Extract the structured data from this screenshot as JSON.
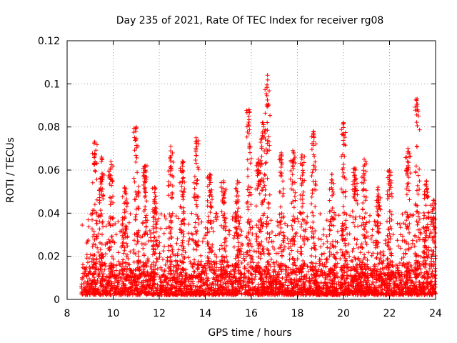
{
  "chart_data": {
    "type": "scatter",
    "title": "Day 235 of 2021, Rate Of TEC Index for receiver rg08",
    "xlabel": "GPS time / hours",
    "ylabel": "ROTI / TECUs",
    "xlim": [
      8,
      24
    ],
    "ylim": [
      0,
      0.12
    ],
    "x_ticks": [
      8,
      10,
      12,
      14,
      16,
      18,
      20,
      22,
      24
    ],
    "y_ticks": [
      0,
      0.02,
      0.04,
      0.06,
      0.08,
      0.1,
      0.12
    ],
    "x_tick_labels": [
      "8",
      "10",
      "12",
      "14",
      "16",
      "18",
      "20",
      "22",
      "24"
    ],
    "y_tick_labels": [
      "0",
      "0.02",
      "0.04",
      "0.06",
      "0.08",
      "0.1",
      "0.12"
    ],
    "grid": true,
    "marker": "+",
    "color": "#ff0000",
    "x_range_of_data": [
      8.6,
      24
    ],
    "dense_band": [
      0.002,
      0.015
    ],
    "peaks": [
      {
        "x": 9.2,
        "y": 0.073
      },
      {
        "x": 9.5,
        "y": 0.066
      },
      {
        "x": 9.9,
        "y": 0.064
      },
      {
        "x": 10.5,
        "y": 0.052
      },
      {
        "x": 11.0,
        "y": 0.08
      },
      {
        "x": 11.4,
        "y": 0.062
      },
      {
        "x": 11.8,
        "y": 0.052
      },
      {
        "x": 12.5,
        "y": 0.071
      },
      {
        "x": 13.0,
        "y": 0.064
      },
      {
        "x": 13.6,
        "y": 0.075
      },
      {
        "x": 14.2,
        "y": 0.058
      },
      {
        "x": 14.8,
        "y": 0.055
      },
      {
        "x": 15.4,
        "y": 0.055
      },
      {
        "x": 15.9,
        "y": 0.088
      },
      {
        "x": 16.3,
        "y": 0.065
      },
      {
        "x": 16.5,
        "y": 0.082
      },
      {
        "x": 16.7,
        "y": 0.104
      },
      {
        "x": 17.3,
        "y": 0.068
      },
      {
        "x": 17.8,
        "y": 0.069
      },
      {
        "x": 18.2,
        "y": 0.067
      },
      {
        "x": 18.7,
        "y": 0.078
      },
      {
        "x": 19.5,
        "y": 0.058
      },
      {
        "x": 20.0,
        "y": 0.082
      },
      {
        "x": 20.5,
        "y": 0.061
      },
      {
        "x": 20.9,
        "y": 0.065
      },
      {
        "x": 21.5,
        "y": 0.052
      },
      {
        "x": 22.0,
        "y": 0.06
      },
      {
        "x": 22.8,
        "y": 0.07
      },
      {
        "x": 23.2,
        "y": 0.093
      },
      {
        "x": 23.6,
        "y": 0.055
      },
      {
        "x": 23.9,
        "y": 0.046
      }
    ]
  }
}
